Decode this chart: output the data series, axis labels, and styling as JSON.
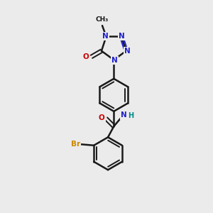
{
  "background_color": "#ebebeb",
  "bond_color": "#1a1a1a",
  "N_color": "#2020cc",
  "O_color": "#cc0000",
  "Br_color": "#cc8800",
  "NH_color": "#008888",
  "figsize": [
    3.0,
    3.0
  ],
  "dpi": 100,
  "xlim": [
    0,
    10
  ],
  "ylim": [
    0,
    10
  ]
}
